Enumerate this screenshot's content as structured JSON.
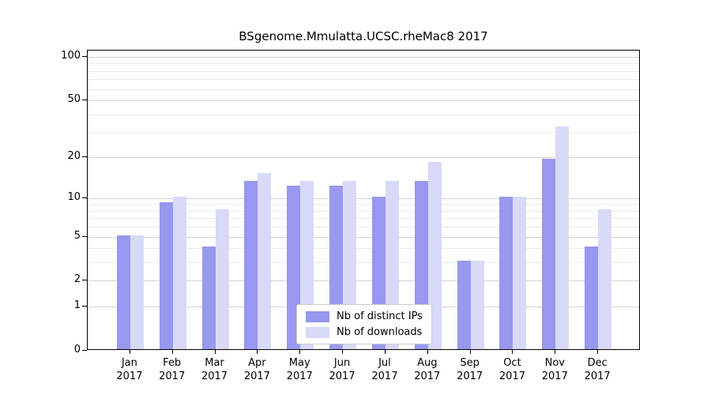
{
  "title": "BSgenome.Mmulatta.UCSC.rheMac8 2017",
  "colors": {
    "distinct_ips": "#9898ee",
    "downloads": "#d9d9f8",
    "grid_major": "#d4d4d4",
    "grid_minor": "#ebebeb",
    "axis": "#000000"
  },
  "legend": {
    "items": [
      {
        "label": "Nb of distinct IPs",
        "series": "distinct_ips"
      },
      {
        "label": "Nb of downloads",
        "series": "downloads"
      }
    ]
  },
  "chart_data": {
    "type": "bar",
    "title": "BSgenome.Mmulatta.UCSC.rheMac8 2017",
    "xlabel": "",
    "ylabel": "",
    "scale": "log1p",
    "ylim": [
      0,
      100
    ],
    "grid": true,
    "legend_position": "lower center",
    "categories": [
      {
        "month": "Jan",
        "year": "2017"
      },
      {
        "month": "Feb",
        "year": "2017"
      },
      {
        "month": "Mar",
        "year": "2017"
      },
      {
        "month": "Apr",
        "year": "2017"
      },
      {
        "month": "May",
        "year": "2017"
      },
      {
        "month": "Jun",
        "year": "2017"
      },
      {
        "month": "Jul",
        "year": "2017"
      },
      {
        "month": "Aug",
        "year": "2017"
      },
      {
        "month": "Sep",
        "year": "2017"
      },
      {
        "month": "Oct",
        "year": "2017"
      },
      {
        "month": "Nov",
        "year": "2017"
      },
      {
        "month": "Dec",
        "year": "2017"
      }
    ],
    "series": [
      {
        "name": "Nb of distinct IPs",
        "values": [
          5,
          9,
          4,
          13,
          12,
          12,
          10,
          13,
          3,
          10,
          19,
          4
        ]
      },
      {
        "name": "Nb of downloads",
        "values": [
          5,
          10,
          8,
          15,
          13,
          13,
          13,
          18,
          3,
          10,
          32,
          8
        ]
      }
    ],
    "y_ticks": [
      0,
      1,
      2,
      5,
      10,
      20,
      50,
      100
    ],
    "y_minor_ticks": [
      3,
      4,
      6,
      7,
      8,
      9,
      30,
      40,
      60,
      70,
      80,
      90
    ]
  }
}
